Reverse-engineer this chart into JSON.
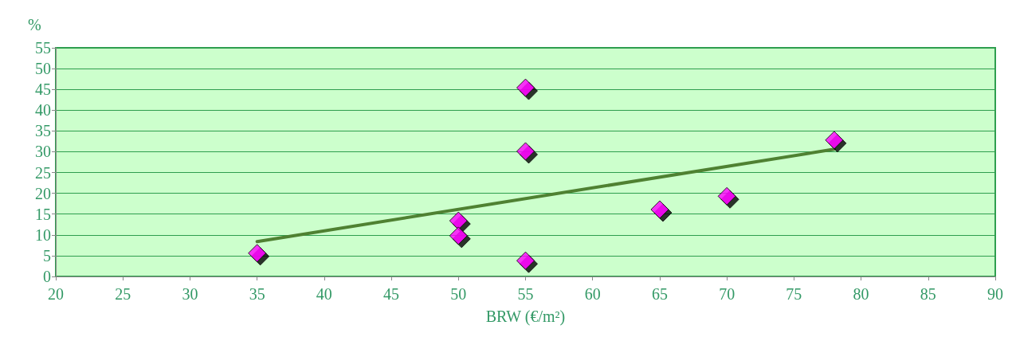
{
  "chart_data": {
    "type": "scatter",
    "xlabel": "BRW (€/m²)",
    "ylabel": "%",
    "xlim": [
      20,
      90
    ],
    "xticks": [
      20,
      25,
      30,
      35,
      40,
      45,
      50,
      55,
      60,
      65,
      70,
      75,
      80,
      85,
      90
    ],
    "ylim": [
      0,
      55
    ],
    "yticks": [
      0,
      5,
      10,
      15,
      20,
      25,
      30,
      35,
      40,
      45,
      50,
      55
    ],
    "grid": "y",
    "series": [
      {
        "marker": "diamond",
        "color": "#ff00ff",
        "x": [
          35,
          50,
          50,
          55,
          55,
          55,
          65,
          70,
          78
        ],
        "values": [
          5.6,
          13.4,
          9.8,
          45.4,
          30.1,
          3.8,
          16.1,
          19.3,
          32.8
        ]
      },
      {
        "type": "line",
        "marker": "none",
        "color": "#4f8132",
        "x": [
          35,
          78
        ],
        "values": [
          8.4,
          30.6
        ]
      }
    ]
  }
}
